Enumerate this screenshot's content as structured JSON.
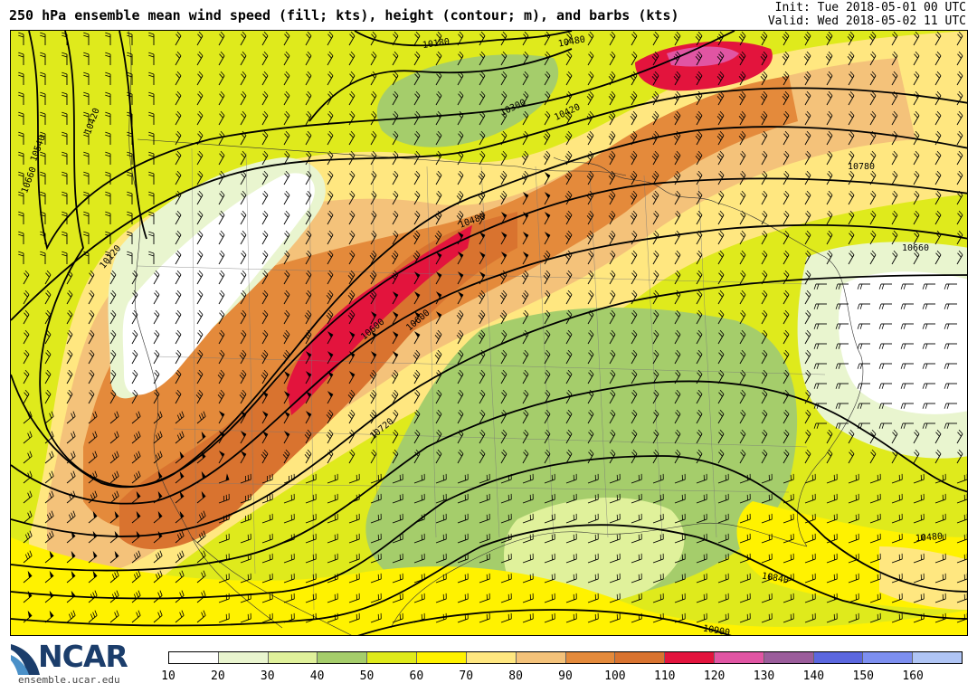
{
  "header": {
    "title": "250 hPa ensemble mean wind speed (fill; kts), height (contour; m), and barbs (kts)",
    "init": "Init: Tue 2018-05-01 00 UTC",
    "valid": "Valid: Wed 2018-05-02 11 UTC"
  },
  "contour_labels": [
    "10180",
    "10420",
    "10540",
    "10660",
    "10120",
    "10300",
    "10480",
    "10480",
    "10600",
    "10600",
    "10720",
    "10420",
    "10840",
    "10480",
    "10900",
    "10780",
    "10660"
  ],
  "legend": {
    "units": "kts",
    "bins": [
      10,
      20,
      30,
      40,
      50,
      60,
      70,
      80,
      90,
      100,
      110,
      120,
      130,
      140,
      150,
      160,
      170
    ],
    "labels": [
      "10",
      "20",
      "30",
      "40",
      "50",
      "60",
      "70",
      "80",
      "90",
      "100",
      "110",
      "120",
      "130",
      "140",
      "150",
      "160"
    ],
    "colors": [
      "#ffffff",
      "#e9f5cf",
      "#e0f19b",
      "#a5cd6b",
      "#dfea1c",
      "#fff200",
      "#ffe780",
      "#f4c27a",
      "#e48a3b",
      "#d9732f",
      "#e3143d",
      "#e155a3",
      "#9b5d9b",
      "#5b67df",
      "#7d8ff0",
      "#b0c5f5"
    ]
  },
  "brand": {
    "logo": "NCAR",
    "url": "ensemble.ucar.edu",
    "colors": {
      "dark": "#1b3d6b",
      "light": "#4a90c8"
    }
  },
  "field_colors": {
    "w": "#ffffff",
    "lg": "#e9f5cf",
    "yg": "#e0f19b",
    "g": "#a5cd6b",
    "y": "#dfea1c",
    "yy": "#fff200",
    "py": "#ffe780",
    "ta": "#f4c27a",
    "o": "#e48a3b",
    "do": "#d9732f",
    "r": "#e3143d",
    "m": "#e155a3"
  }
}
